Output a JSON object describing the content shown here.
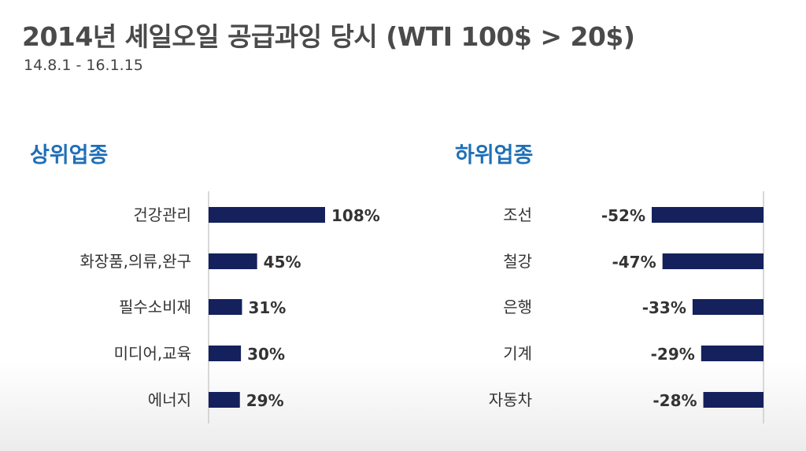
{
  "title": "2014년 셰일오일 공급과잉 당시 (WTI 100$ > 20$)",
  "subtitle": "14.8.1 - 16.1.15",
  "colors": {
    "bar": "#14215c",
    "section_title": "#1f6fb7",
    "axis": "#cccccc"
  },
  "chart_data": [
    {
      "type": "bar",
      "orientation": "horizontal",
      "title": "상위업종",
      "categories": [
        "건강관리",
        "화장품,의류,완구",
        "필수소비재",
        "미디어,교육",
        "에너지"
      ],
      "values": [
        108,
        45,
        31,
        30,
        29
      ],
      "value_labels": [
        "108%",
        "45%",
        "31%",
        "30%",
        "29%"
      ],
      "unit": "%",
      "xlim": [
        0,
        108
      ]
    },
    {
      "type": "bar",
      "orientation": "horizontal",
      "title": "하위업종",
      "categories": [
        "조선",
        "철강",
        "은행",
        "기계",
        "자동차"
      ],
      "values": [
        -52,
        -47,
        -33,
        -29,
        -28
      ],
      "value_labels": [
        "-52%",
        "-47%",
        "-33%",
        "-29%",
        "-28%"
      ],
      "unit": "%",
      "xlim": [
        -52,
        0
      ]
    }
  ]
}
